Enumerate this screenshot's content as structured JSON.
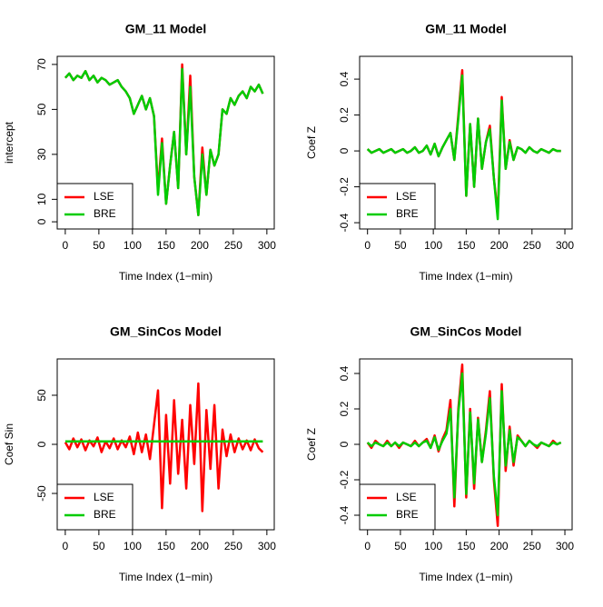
{
  "chart_data": [
    {
      "type": "line",
      "title": "GM_11 Model",
      "xlabel": "Time Index (1−min)",
      "ylabel": "intercept",
      "x": [
        0,
        6,
        12,
        18,
        24,
        30,
        36,
        42,
        48,
        54,
        60,
        66,
        72,
        78,
        84,
        90,
        96,
        102,
        108,
        114,
        120,
        126,
        132,
        138,
        144,
        150,
        156,
        162,
        168,
        174,
        180,
        186,
        192,
        198,
        204,
        210,
        216,
        222,
        228,
        234,
        240,
        246,
        252,
        258,
        264,
        270,
        276,
        282,
        288,
        294
      ],
      "series": [
        {
          "name": "LSE",
          "color": "#ff0000",
          "values": [
            64,
            66,
            63,
            65,
            64,
            67,
            63,
            65,
            62,
            64,
            63,
            61,
            62,
            63,
            60,
            58,
            55,
            48,
            52,
            56,
            50,
            55,
            47,
            14,
            37,
            8,
            25,
            40,
            15,
            70,
            30,
            65,
            20,
            3,
            33,
            12,
            32,
            25,
            30,
            50,
            48,
            55,
            52,
            56,
            58,
            55,
            60,
            58,
            61,
            57
          ]
        },
        {
          "name": "BRE",
          "color": "#00cc00",
          "values": [
            64,
            66,
            63,
            65,
            64,
            67,
            63,
            65,
            62,
            64,
            63,
            61,
            62,
            63,
            60,
            58,
            55,
            48,
            52,
            56,
            50,
            55,
            47,
            12,
            35,
            8,
            25,
            40,
            15,
            68,
            30,
            60,
            20,
            3,
            30,
            12,
            32,
            25,
            30,
            50,
            48,
            55,
            52,
            56,
            58,
            55,
            60,
            58,
            61,
            57
          ]
        }
      ],
      "xlim": [
        -12,
        311
      ],
      "ylim": [
        -3.2,
        73.6
      ],
      "xticks": [
        0,
        50,
        100,
        150,
        200,
        250,
        300
      ],
      "yticks": [
        0,
        10,
        30,
        50,
        70
      ],
      "legend": "bottomleft"
    },
    {
      "type": "line",
      "title": "GM_11 Model",
      "xlabel": "Time Index (1−min)",
      "ylabel": "Coef Z",
      "x": [
        0,
        6,
        12,
        18,
        24,
        30,
        36,
        42,
        48,
        54,
        60,
        66,
        72,
        78,
        84,
        90,
        96,
        102,
        108,
        114,
        120,
        126,
        132,
        138,
        144,
        150,
        156,
        162,
        168,
        174,
        180,
        186,
        192,
        198,
        204,
        210,
        216,
        222,
        228,
        234,
        240,
        246,
        252,
        258,
        264,
        270,
        276,
        282,
        288,
        294
      ],
      "series": [
        {
          "name": "LSE",
          "color": "#ff0000",
          "values": [
            0.01,
            -0.01,
            0.0,
            0.01,
            -0.01,
            0.0,
            0.01,
            -0.01,
            0.0,
            0.01,
            -0.01,
            0.0,
            0.02,
            -0.01,
            0.0,
            0.03,
            -0.02,
            0.04,
            -0.03,
            0.02,
            0.06,
            0.1,
            -0.05,
            0.2,
            0.45,
            -0.25,
            0.15,
            -0.2,
            0.18,
            -0.1,
            0.05,
            0.14,
            -0.15,
            -0.35,
            0.3,
            -0.1,
            0.06,
            -0.05,
            0.02,
            0.01,
            -0.01,
            0.02,
            0.0,
            -0.01,
            0.01,
            0.0,
            -0.01,
            0.01,
            0.0,
            0.0
          ]
        },
        {
          "name": "BRE",
          "color": "#00cc00",
          "values": [
            0.01,
            -0.01,
            0.0,
            0.01,
            -0.01,
            0.0,
            0.01,
            -0.01,
            0.0,
            0.01,
            -0.01,
            0.0,
            0.02,
            -0.01,
            0.0,
            0.03,
            -0.02,
            0.04,
            -0.03,
            0.02,
            0.06,
            0.1,
            -0.05,
            0.18,
            0.42,
            -0.25,
            0.15,
            -0.2,
            0.18,
            -0.1,
            0.05,
            0.12,
            -0.15,
            -0.38,
            0.28,
            -0.1,
            0.05,
            -0.05,
            0.02,
            0.01,
            -0.01,
            0.02,
            0.0,
            -0.01,
            0.01,
            0.0,
            -0.01,
            0.01,
            0.0,
            0.0
          ]
        }
      ],
      "xlim": [
        -12,
        311
      ],
      "ylim": [
        -0.435,
        0.527
      ],
      "xticks": [
        0,
        50,
        100,
        150,
        200,
        250,
        300
      ],
      "yticks": [
        -0.4,
        -0.2,
        0.0,
        0.2,
        0.4
      ],
      "legend": "bottomleft"
    },
    {
      "type": "line",
      "title": "GM_SinCos Model",
      "xlabel": "Time Index (1−min)",
      "ylabel": "Coef Sin",
      "x": [
        0,
        6,
        12,
        18,
        24,
        30,
        36,
        42,
        48,
        54,
        60,
        66,
        72,
        78,
        84,
        90,
        96,
        102,
        108,
        114,
        120,
        126,
        132,
        138,
        144,
        150,
        156,
        162,
        168,
        174,
        180,
        186,
        192,
        198,
        204,
        210,
        216,
        222,
        228,
        234,
        240,
        246,
        252,
        258,
        264,
        270,
        276,
        282,
        288,
        294
      ],
      "series": [
        {
          "name": "LSE",
          "color": "#ff0000",
          "values": [
            2,
            -5,
            6,
            -3,
            5,
            -6,
            4,
            -2,
            7,
            -8,
            3,
            -4,
            6,
            -5,
            4,
            -3,
            8,
            -10,
            12,
            -8,
            10,
            -15,
            20,
            55,
            -65,
            30,
            -40,
            45,
            -30,
            25,
            -45,
            40,
            -20,
            62,
            -68,
            35,
            -25,
            40,
            -45,
            15,
            -12,
            10,
            -8,
            6,
            -5,
            4,
            -6,
            5,
            -4,
            -8
          ]
        },
        {
          "name": "BRE",
          "color": "#00cc00",
          "values": [
            3,
            3,
            3,
            3,
            3,
            3,
            3,
            3,
            3,
            3,
            3,
            3,
            3,
            3,
            3,
            3,
            3,
            3,
            3,
            3,
            3,
            3,
            3,
            3,
            3,
            3,
            3,
            3,
            3,
            3,
            3,
            3,
            3,
            3,
            3,
            3,
            3,
            3,
            3,
            3,
            3,
            3,
            3,
            3,
            3,
            3,
            3,
            3,
            3,
            3
          ]
        }
      ],
      "xlim": [
        -12,
        311
      ],
      "ylim": [
        -87,
        87
      ],
      "xticks": [
        0,
        50,
        100,
        150,
        200,
        250,
        300
      ],
      "yticks": [
        -50,
        0,
        50
      ],
      "legend": "bottomleft"
    },
    {
      "type": "line",
      "title": "GM_SinCos Model",
      "xlabel": "Time Index (1−min)",
      "ylabel": "Coef Z",
      "x": [
        0,
        6,
        12,
        18,
        24,
        30,
        36,
        42,
        48,
        54,
        60,
        66,
        72,
        78,
        84,
        90,
        96,
        102,
        108,
        114,
        120,
        126,
        132,
        138,
        144,
        150,
        156,
        162,
        168,
        174,
        180,
        186,
        192,
        198,
        204,
        210,
        216,
        222,
        228,
        234,
        240,
        246,
        252,
        258,
        264,
        270,
        276,
        282,
        288,
        294
      ],
      "series": [
        {
          "name": "LSE",
          "color": "#ff0000",
          "values": [
            0.01,
            -0.02,
            0.02,
            0.0,
            -0.01,
            0.02,
            -0.01,
            0.01,
            -0.02,
            0.01,
            0.0,
            -0.01,
            0.02,
            -0.01,
            0.01,
            0.03,
            -0.02,
            0.05,
            -0.04,
            0.03,
            0.08,
            0.25,
            -0.35,
            0.2,
            0.45,
            -0.3,
            0.2,
            -0.25,
            0.15,
            -0.1,
            0.08,
            0.3,
            -0.2,
            -0.46,
            0.34,
            -0.15,
            0.1,
            -0.12,
            0.05,
            0.02,
            -0.01,
            0.02,
            0.0,
            -0.02,
            0.01,
            0.0,
            -0.01,
            0.02,
            0.0,
            0.01
          ]
        },
        {
          "name": "BRE",
          "color": "#00cc00",
          "values": [
            0.01,
            -0.01,
            0.01,
            0.0,
            -0.01,
            0.01,
            -0.01,
            0.01,
            -0.01,
            0.01,
            0.0,
            -0.01,
            0.01,
            -0.01,
            0.01,
            0.02,
            -0.02,
            0.04,
            -0.03,
            0.02,
            0.06,
            0.2,
            -0.3,
            0.18,
            0.4,
            -0.28,
            0.18,
            -0.22,
            0.14,
            -0.1,
            0.06,
            0.26,
            -0.18,
            -0.4,
            0.3,
            -0.12,
            0.08,
            -0.1,
            0.04,
            0.02,
            -0.01,
            0.02,
            0.0,
            -0.01,
            0.01,
            0.0,
            -0.01,
            0.01,
            0.0,
            0.01
          ]
        }
      ],
      "xlim": [
        -12,
        311
      ],
      "ylim": [
        -0.482,
        0.482
      ],
      "xticks": [
        0,
        50,
        100,
        150,
        200,
        250,
        300
      ],
      "yticks": [
        -0.4,
        -0.2,
        0.0,
        0.2,
        0.4
      ],
      "legend": "bottomleft"
    }
  ]
}
